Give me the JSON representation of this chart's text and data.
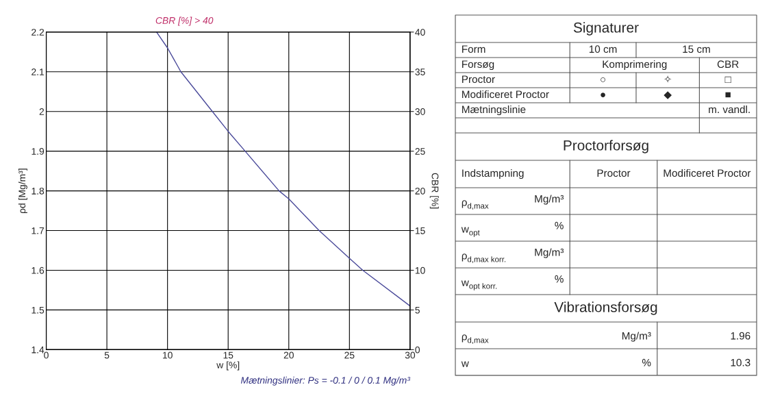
{
  "chart_data": [
    {
      "type": "line",
      "xlabel": "w [%]",
      "ylabel": "ρd [Mg/m³]",
      "y2label": "CBR [%]",
      "x": [
        9.1,
        10,
        11.1,
        13.7,
        15,
        16.4,
        19.2,
        20,
        22.5,
        25,
        26.1,
        30
      ],
      "series": [
        {
          "color": "#4a4a9a",
          "values": [
            2.2,
            2.16,
            2.1,
            2.0,
            1.95,
            1.9,
            1.8,
            1.78,
            1.7,
            1.63,
            1.6,
            1.51
          ]
        }
      ],
      "xlim": [
        0,
        30
      ],
      "xticks": [
        0,
        5,
        10,
        15,
        20,
        25,
        30
      ],
      "ylim": [
        1.4,
        2.2
      ],
      "yticks": [
        1.4,
        1.5,
        1.6,
        1.7,
        1.8,
        1.9,
        2,
        2.1,
        2.2
      ],
      "y2lim": [
        0,
        40
      ],
      "y2ticks": [
        0,
        5,
        10,
        15,
        20,
        25,
        30,
        35,
        40
      ],
      "grid": true,
      "marker": "none",
      "line_style": "solid",
      "annotations": [
        "CBR [%] > 40",
        "Mætningslinier: Ps = -0.1 / 0 / 0.1 Mg/m³"
      ]
    },
    {
      "type": "other",
      "title": "Signaturer",
      "annotations": [
        "Form",
        "10 cm",
        "15 cm",
        "Forsøg",
        "Komprimering",
        "CBR",
        "Proctor",
        "○",
        "✧",
        "□",
        "Modificeret Proctor",
        "●",
        "◆",
        "■",
        "Mætningslinie",
        "m. vandl.",
        "Proctorforsøg",
        "Indstampning",
        "Proctor",
        "Modificeret Proctor",
        "ρ$_{d,max}$",
        "Mg/m³",
        "w$_{opt}$",
        "%",
        "ρ$_{d,max korr.}$",
        "Mg/m³",
        "w$_{opt korr.}$",
        "%",
        "Vibrationsforsøg",
        "ρ$_{d,max}$",
        "Mg/m³",
        "1.96",
        "w",
        "%",
        "10.3"
      ]
    }
  ]
}
